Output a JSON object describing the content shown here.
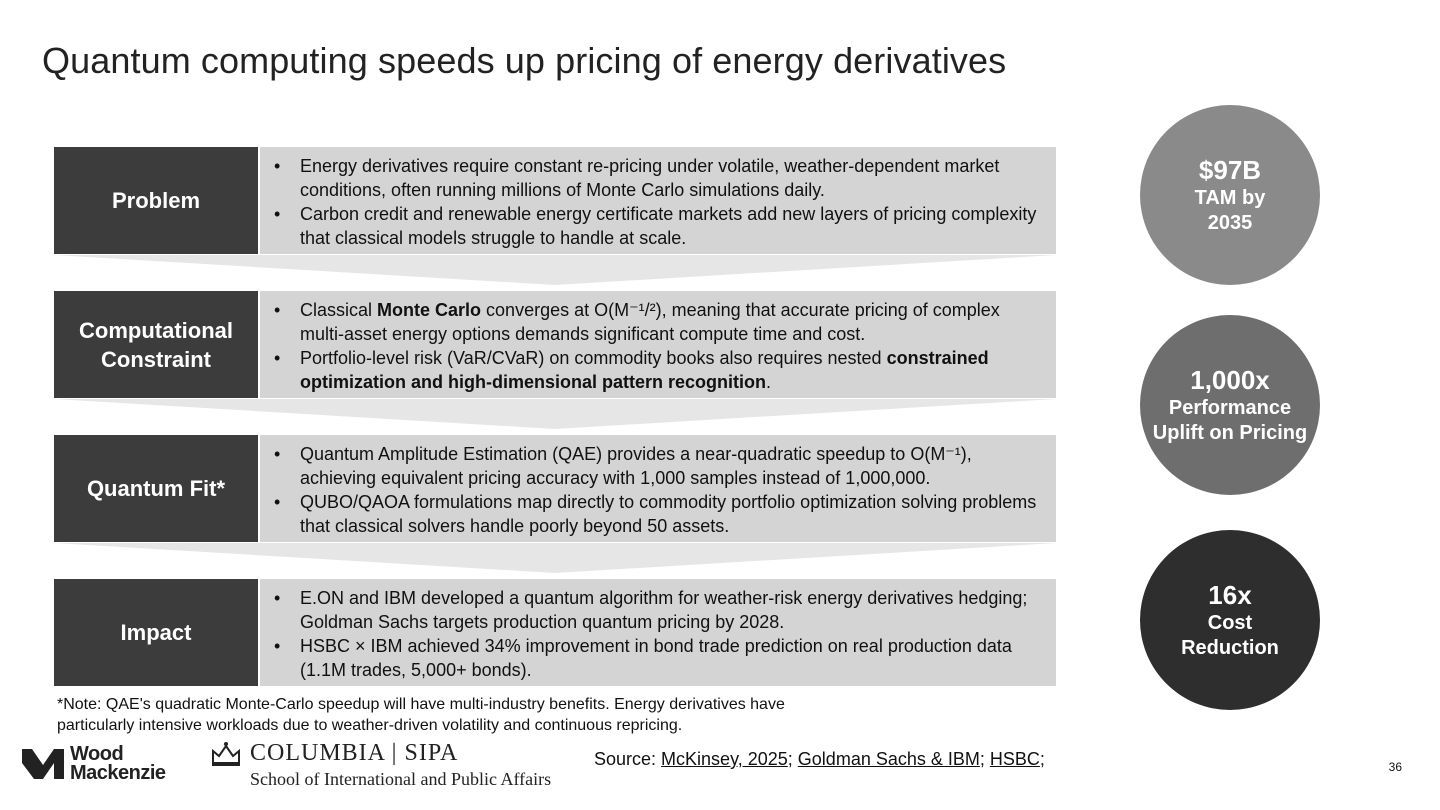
{
  "title": "Quantum computing speeds up pricing of energy derivatives",
  "rows": [
    {
      "label": "Problem",
      "bullets": [
        [
          "Energy derivatives require constant re-pricing under volatile, weather-dependent market conditions, often running millions of Monte Carlo simulations daily."
        ],
        [
          "Carbon credit and renewable energy certificate markets add new layers of pricing complexity that classical models struggle to handle at scale."
        ]
      ]
    },
    {
      "label": "Computational\nConstraint",
      "bullets": [
        [
          "Classical ",
          "Monte Carlo",
          " converges at O(M⁻¹/²), meaning that accurate pricing of complex multi-asset energy options demands significant compute time and cost."
        ],
        [
          "Portfolio-level risk (VaR/CVaR) on commodity books also requires nested ",
          "constrained optimization and high-dimensional pattern recognition",
          "."
        ]
      ]
    },
    {
      "label": "Quantum Fit*",
      "bullets": [
        [
          "Quantum Amplitude Estimation (QAE) provides a near-quadratic speedup to O(M⁻¹), achieving equivalent pricing accuracy with 1,000 samples instead of 1,000,000."
        ],
        [
          "QUBO/QAOA formulations map directly to commodity portfolio optimization solving problems that classical solvers handle poorly beyond 50 assets."
        ]
      ]
    },
    {
      "label": "Impact",
      "bullets": [
        [
          "E.ON and IBM developed a quantum algorithm for weather-risk energy derivatives hedging; Goldman Sachs targets production quantum pricing by 2028."
        ],
        [
          "HSBC × IBM achieved 34% improvement in bond trade prediction on real production data (1.1M trades, 5,000+ bonds)."
        ]
      ]
    }
  ],
  "stats": [
    {
      "big": "$97B",
      "small": "TAM by\n2035",
      "color": "#8a8a8a"
    },
    {
      "big": "1,000x",
      "small": "Performance\nUplift on Pricing",
      "color": "#6e6e6e"
    },
    {
      "big": "16x",
      "small": "Cost\nReduction",
      "color": "#2e2e2e"
    }
  ],
  "note": "*Note: QAE's quadratic Monte-Carlo speedup will have multi-industry benefits. Energy derivatives have particularly intensive workloads due to weather-driven volatility and continuous repricing.",
  "source": {
    "prefix": "Source: ",
    "links": [
      "McKinsey, 2025",
      "Goldman Sachs & IBM",
      "HSBC"
    ],
    "sep": "; ",
    "suffix": ";"
  },
  "logos": {
    "wood_mackenzie_line1": "Wood",
    "wood_mackenzie_line2": "Mackenzie",
    "columbia_name": "COLUMBIA | SIPA",
    "columbia_sub": "School of International and Public Affairs"
  },
  "page_number": "36"
}
